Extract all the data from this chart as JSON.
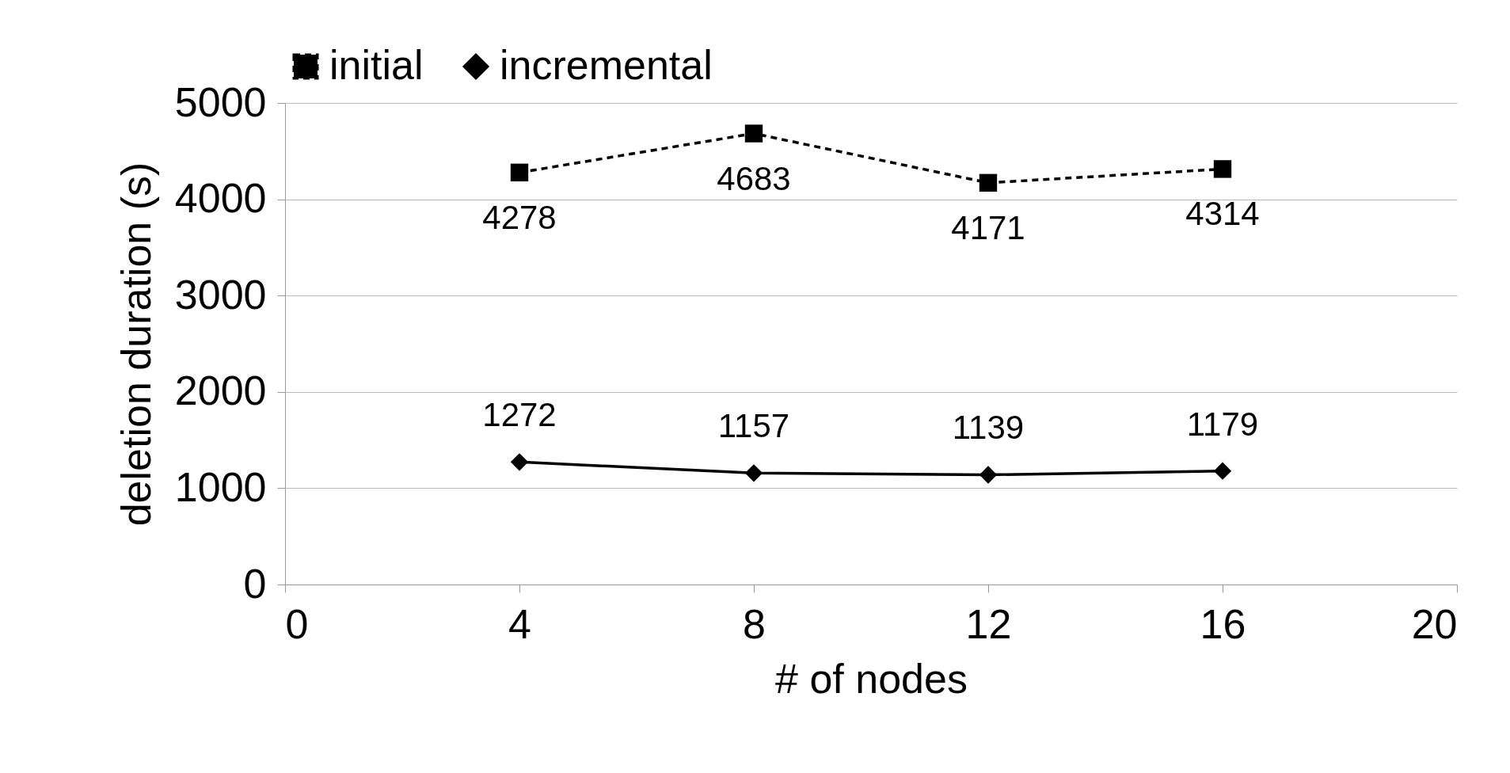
{
  "chart_data": {
    "type": "line",
    "xlabel": "# of nodes",
    "ylabel": "deletion duration (s)",
    "x": [
      4,
      8,
      12,
      16
    ],
    "series": [
      {
        "name": "initial",
        "color": "#000000",
        "values": [
          4278,
          4683,
          4171,
          4314
        ],
        "marker": "square",
        "line_style": "dashed"
      },
      {
        "name": "incremental",
        "color": "#000000",
        "values": [
          1272,
          1157,
          1139,
          1179
        ],
        "marker": "diamond",
        "line_style": "solid"
      }
    ],
    "xlim": [
      0,
      20
    ],
    "xticks": [
      0,
      4,
      8,
      12,
      16,
      20
    ],
    "ylim": [
      0,
      5000
    ],
    "yticks": [
      0,
      1000,
      2000,
      3000,
      4000,
      5000
    ],
    "grid": "y",
    "legend": "top",
    "data_labels": true
  }
}
